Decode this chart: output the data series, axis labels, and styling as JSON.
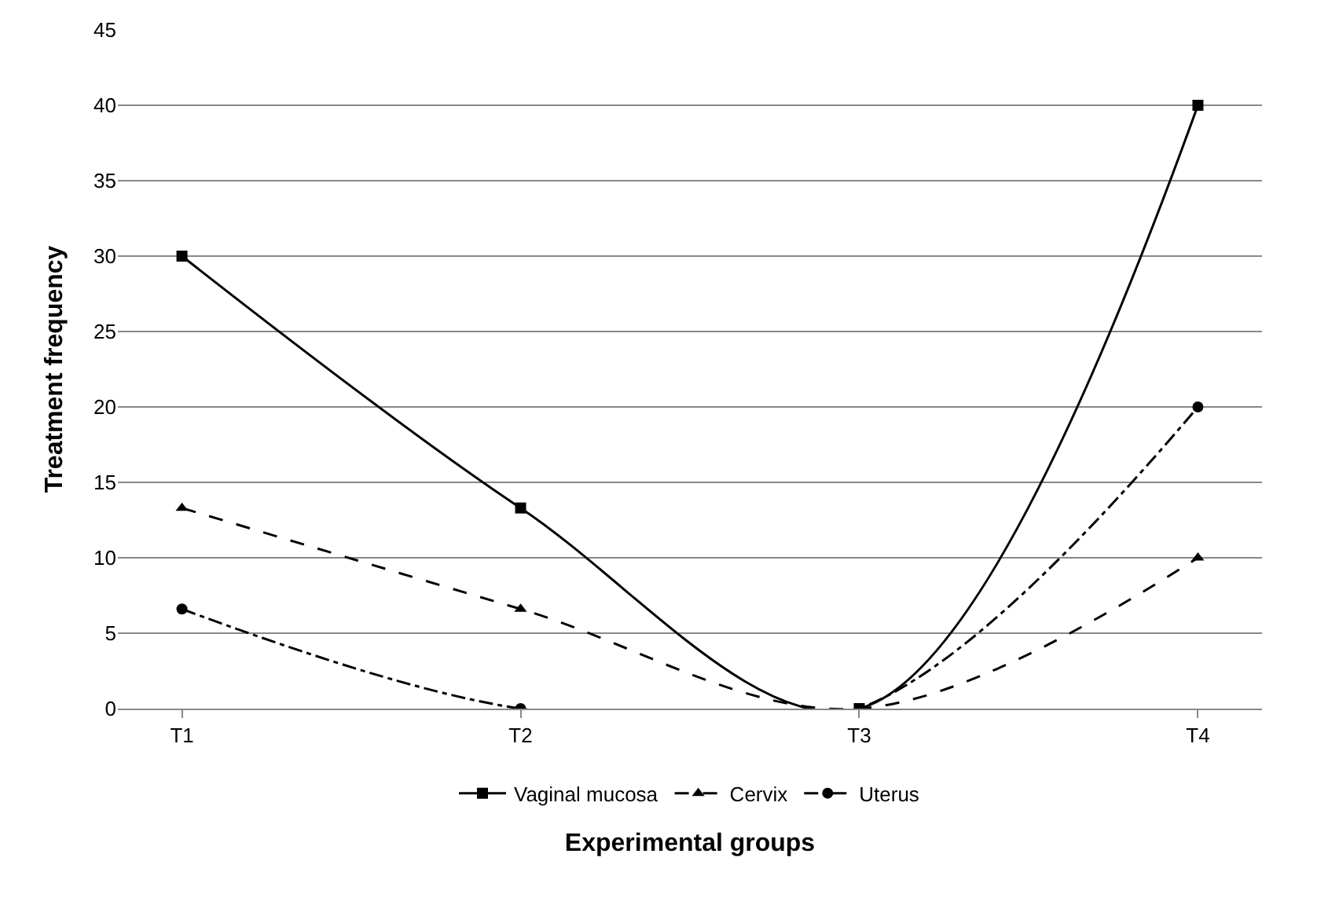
{
  "chart_data": {
    "type": "line",
    "xlabel": "Experimental groups",
    "ylabel": "Treatment frequency",
    "categories": [
      "T1",
      "T2",
      "T3",
      "T4"
    ],
    "series": [
      {
        "name": "Vaginal mucosa",
        "color": "#000000",
        "values": [
          30,
          13.3,
          0,
          40
        ],
        "marker": "square",
        "line_style": "solid"
      },
      {
        "name": "Cervix",
        "color": "#000000",
        "values": [
          13.3,
          6.6,
          0,
          10
        ],
        "marker": "triangle",
        "line_style": "dashed"
      },
      {
        "name": "Uterus",
        "color": "#000000",
        "values": [
          6.6,
          0,
          0,
          20
        ],
        "marker": "circle",
        "line_style": "dashdot"
      }
    ],
    "ylim": [
      0,
      45
    ],
    "yticks": [
      0,
      5,
      10,
      15,
      20,
      25,
      30,
      35,
      40,
      45
    ],
    "grid": "y",
    "legend": "bottom"
  }
}
